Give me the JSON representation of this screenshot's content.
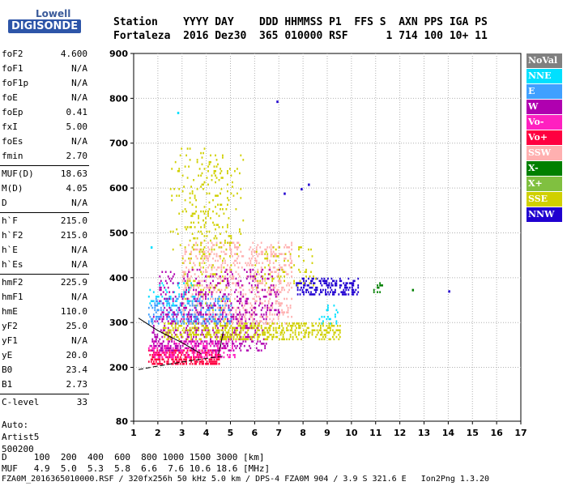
{
  "logo": {
    "line1": "Lowell",
    "line2": "DIGISONDE"
  },
  "header": {
    "labels": "Station    YYYY DAY    DDD HHMMSS P1  FFS S  AXN PPS IGA PS",
    "values": "Fortaleza  2016 Dez30  365 010000 RSF      1 714 100 10+ 11"
  },
  "params": [
    {
      "label": "foF2",
      "value": "4.600"
    },
    {
      "label": "foF1",
      "value": "N/A"
    },
    {
      "label": "foF1p",
      "value": "N/A"
    },
    {
      "label": "foE",
      "value": "N/A"
    },
    {
      "label": "foEp",
      "value": "0.41"
    },
    {
      "label": "fxI",
      "value": "5.00"
    },
    {
      "label": "foEs",
      "value": "N/A"
    },
    {
      "label": "fmin",
      "value": "2.70"
    },
    {
      "label": "MUF(D)",
      "value": "18.63"
    },
    {
      "label": "M(D)",
      "value": "4.05"
    },
    {
      "label": "D",
      "value": "N/A"
    },
    {
      "label": "h`F",
      "value": "215.0"
    },
    {
      "label": "h`F2",
      "value": "215.0"
    },
    {
      "label": "h`E",
      "value": "N/A"
    },
    {
      "label": "h`Es",
      "value": "N/A"
    },
    {
      "label": "hmF2",
      "value": "225.9"
    },
    {
      "label": "hmF1",
      "value": "N/A"
    },
    {
      "label": "hmE",
      "value": "110.0"
    },
    {
      "label": "yF2",
      "value": "25.0"
    },
    {
      "label": "yF1",
      "value": "N/A"
    },
    {
      "label": "yE",
      "value": "20.0"
    },
    {
      "label": "B0",
      "value": "23.4"
    },
    {
      "label": "B1",
      "value": "2.73"
    },
    {
      "label": "C-level",
      "value": "33"
    }
  ],
  "autoscaling": {
    "line1": "Auto:",
    "line2": "Artist5",
    "line3": "500200"
  },
  "footer": {
    "d_line": "D     100  200  400  600  800 1000 1500 3000 [km]",
    "muf_line": "MUF   4.9  5.0  5.3  5.8  6.6  7.6 10.6 18.6 [MHz]",
    "filename": "FZA0M_2016365010000.RSF / 320fx256h 50 kHz 5.0 km / DPS-4 FZA0M 904 / 3.9 S 321.6 E   Ion2Png 1.3.20"
  },
  "legend": [
    {
      "name": "NoVal",
      "color": "#808080"
    },
    {
      "name": "NNE",
      "color": "#00e0ff"
    },
    {
      "name": "E",
      "color": "#40a0ff"
    },
    {
      "name": "W",
      "color": "#b000b0"
    },
    {
      "name": "Vo-",
      "color": "#ff20c0"
    },
    {
      "name": "Vo+",
      "color": "#ff0040"
    },
    {
      "name": "SSW",
      "color": "#ffb0b0"
    },
    {
      "name": "X-",
      "color": "#008000"
    },
    {
      "name": "X+",
      "color": "#80c040"
    },
    {
      "name": "SSE",
      "color": "#d0d000"
    },
    {
      "name": "NNW",
      "color": "#2000d0"
    }
  ],
  "chart_data": {
    "type": "scatter",
    "x_range": [
      1,
      17
    ],
    "y_range": [
      80,
      900
    ],
    "x_ticks": [
      "1",
      "2",
      "3",
      "4",
      "5",
      "6",
      "7",
      "8",
      "9",
      "10",
      "11",
      "12",
      "13",
      "14",
      "15",
      "16",
      "17"
    ],
    "y_ticks": [
      "80",
      "200",
      "300",
      "400",
      "500",
      "600",
      "700",
      "800",
      "900"
    ],
    "grid": true,
    "legend_position": "right",
    "clusters": [
      {
        "series": "Vo+",
        "x": [
          1.6,
          4.5
        ],
        "y": [
          210,
          240
        ],
        "density": 0.55
      },
      {
        "series": "Vo-",
        "x": [
          1.6,
          5.2
        ],
        "y": [
          225,
          260
        ],
        "density": 0.35
      },
      {
        "series": "W",
        "x": [
          1.7,
          6.5
        ],
        "y": [
          240,
          320
        ],
        "density": 0.25
      },
      {
        "series": "SSE",
        "x": [
          2.2,
          9.5
        ],
        "y": [
          265,
          300
        ],
        "density": 0.35
      },
      {
        "series": "SSW",
        "x": [
          3.0,
          7.5
        ],
        "y": [
          300,
          480
        ],
        "density": 0.18
      },
      {
        "series": "SSE",
        "x": [
          3.0,
          5.0
        ],
        "y": [
          300,
          650
        ],
        "density": 0.06
      },
      {
        "series": "E",
        "x": [
          1.6,
          5.0
        ],
        "y": [
          300,
          360
        ],
        "density": 0.25
      },
      {
        "series": "NNE",
        "x": [
          1.6,
          3.5
        ],
        "y": [
          340,
          390
        ],
        "density": 0.12
      },
      {
        "series": "W",
        "x": [
          2.0,
          7.0
        ],
        "y": [
          320,
          420
        ],
        "density": 0.12
      },
      {
        "series": "NNW",
        "x": [
          7.7,
          10.3
        ],
        "y": [
          365,
          400
        ],
        "density": 0.35
      },
      {
        "series": "SSE",
        "x": [
          6.0,
          8.5
        ],
        "y": [
          380,
          470
        ],
        "density": 0.08
      },
      {
        "series": "X-",
        "x": [
          10.9,
          11.3
        ],
        "y": [
          370,
          390
        ],
        "density": 0.3
      },
      {
        "series": "NNE",
        "x": [
          8.5,
          9.5
        ],
        "y": [
          300,
          340
        ],
        "density": 0.08
      },
      {
        "series": "SSE",
        "x": [
          2.5,
          5.5
        ],
        "y": [
          450,
          690
        ],
        "density": 0.05
      }
    ],
    "points": [
      {
        "series": "NNW",
        "x": 6.9,
        "y": 795
      },
      {
        "series": "NNW",
        "x": 7.9,
        "y": 600
      },
      {
        "series": "NNW",
        "x": 7.2,
        "y": 590
      },
      {
        "series": "NNW",
        "x": 8.2,
        "y": 610
      },
      {
        "series": "NNW",
        "x": 14.0,
        "y": 372
      },
      {
        "series": "X-",
        "x": 12.5,
        "y": 375
      },
      {
        "series": "NNE",
        "x": 2.8,
        "y": 770
      },
      {
        "series": "NNE",
        "x": 1.7,
        "y": 470
      }
    ],
    "curves": [
      {
        "style": "dashed",
        "color": "#000000",
        "x": [
          1.2,
          2.0,
          3.0,
          4.0,
          4.7
        ],
        "y": [
          195,
          203,
          212,
          220,
          225
        ]
      },
      {
        "style": "solid",
        "color": "#000000",
        "x": [
          1.2,
          2.0,
          3.0,
          3.8
        ],
        "y": [
          310,
          282,
          255,
          230
        ]
      },
      {
        "style": "solid",
        "color": "#000000",
        "x": [
          4.5,
          4.6,
          4.7
        ],
        "y": [
          230,
          250,
          280
        ]
      }
    ]
  }
}
